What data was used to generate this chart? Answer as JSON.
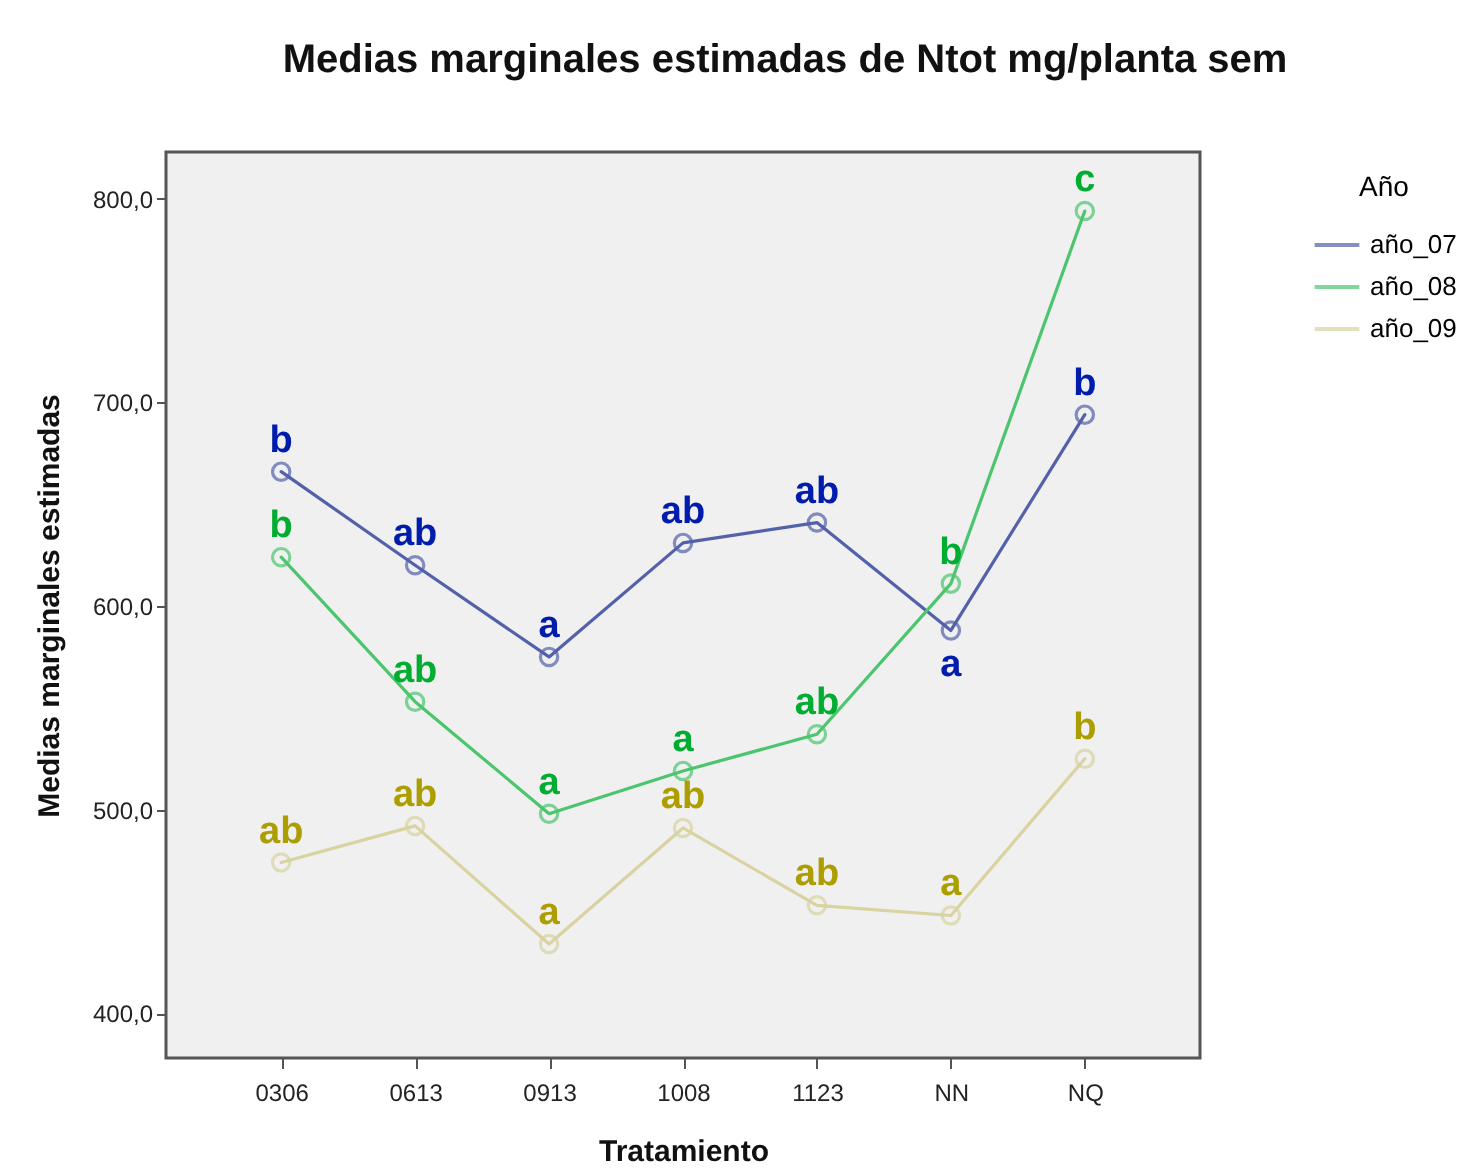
{
  "chart_data": {
    "type": "line",
    "title": "Medias marginales estimadas de Ntot mg/planta sem",
    "xlabel": "Tratamiento",
    "ylabel": "Medias marginales estimadas",
    "legend_title": "Año",
    "categories": [
      "0306",
      "0613",
      "0913",
      "1008",
      "1123",
      "NN",
      "NQ"
    ],
    "series": [
      {
        "name": "año_07",
        "color": "#5361aa",
        "values": [
          666,
          620,
          575,
          631,
          641,
          588,
          694
        ],
        "value_labels": [
          "b",
          "ab",
          "a",
          "ab",
          "ab",
          "a",
          "b"
        ]
      },
      {
        "name": "año_08",
        "color": "#4cc56e",
        "values": [
          624,
          553,
          498,
          519,
          537,
          611,
          794
        ],
        "value_labels": [
          "b",
          "ab",
          "a",
          "a",
          "ab",
          "b",
          "c"
        ]
      },
      {
        "name": "año_09",
        "color": "#d8d3a0",
        "values": [
          474,
          492,
          434,
          491,
          453,
          448,
          525
        ],
        "value_labels": [
          "ab",
          "ab",
          "a",
          "ab",
          "ab",
          "a",
          "b"
        ]
      }
    ],
    "ylim": [
      378,
      823
    ],
    "yticks": [
      {
        "value": 400,
        "label": "400,0"
      },
      {
        "value": 500,
        "label": "500,0"
      },
      {
        "value": 600,
        "label": "600,0"
      },
      {
        "value": 700,
        "label": "700,0"
      },
      {
        "value": 800,
        "label": "800,0"
      }
    ],
    "grid": false,
    "legend": "top right",
    "marker": "circle",
    "line_style": "solid"
  }
}
